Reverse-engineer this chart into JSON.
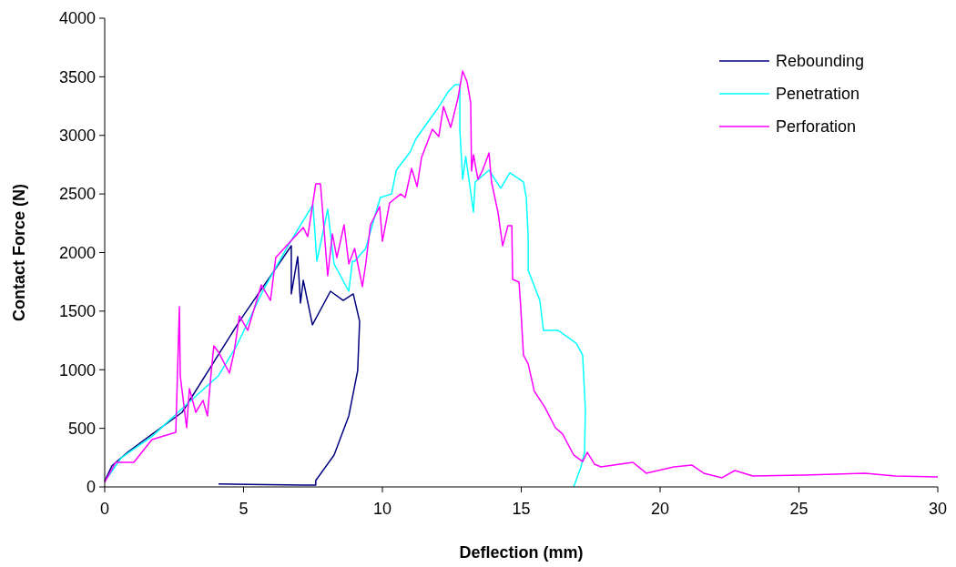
{
  "chart_data": {
    "type": "line",
    "xlabel": "Deflection (mm)",
    "ylabel": "Contact Force (N)",
    "xlim": [
      0,
      30
    ],
    "xticks": [
      0,
      5,
      10,
      15,
      20,
      25,
      30
    ],
    "ylim": [
      0,
      4000
    ],
    "yticks": [
      0,
      500,
      1000,
      1500,
      2000,
      2500,
      3000,
      3500,
      4000
    ],
    "grid": false,
    "legend": "top right",
    "marker": "none",
    "line_style": "solid",
    "series": [
      {
        "name": "Rebounding",
        "color": "#000080",
        "x": [
          0,
          0.26,
          0.82,
          1.57,
          2.79,
          4.85,
          6.72,
          6.72,
          6.95,
          7.05,
          7.15,
          7.48,
          8.13,
          8.59,
          8.95,
          9.18,
          9.11,
          8.79,
          8.26,
          7.6,
          7.6,
          7.15,
          4.1
        ],
        "values": [
          50,
          180,
          295,
          427,
          637,
          1413,
          2058,
          1647,
          1965,
          1569,
          1763,
          1383,
          1670,
          1592,
          1647,
          1413,
          994,
          606,
          272,
          54,
          15,
          15,
          25
        ]
      },
      {
        "name": "Penetration",
        "color": "#00ffff",
        "x": [
          0.1,
          0.6,
          1.7,
          3.0,
          4.1,
          4.75,
          5.74,
          6.6,
          7.5,
          7.64,
          8.03,
          8.26,
          8.79,
          8.92,
          9.0,
          9.4,
          9.77,
          9.93,
          10.33,
          10.5,
          11.0,
          11.2,
          11.57,
          11.97,
          12.39,
          12.62,
          12.79,
          12.79,
          12.89,
          13.0,
          13.28,
          13.34,
          13.84,
          14.26,
          14.59,
          15.08,
          15.18,
          15.25,
          15.25,
          15.67,
          15.8,
          16.33,
          16.98,
          17.21,
          17.31,
          17.28,
          17.15,
          16.89
        ],
        "values": [
          80,
          250,
          430,
          715,
          950,
          1204,
          1693,
          2058,
          2408,
          1926,
          2369,
          1903,
          1670,
          1926,
          1926,
          2035,
          2346,
          2470,
          2500,
          2703,
          2858,
          2967,
          3091,
          3223,
          3379,
          3433,
          3433,
          3045,
          2625,
          2820,
          2346,
          2602,
          2703,
          2548,
          2680,
          2602,
          2470,
          2136,
          1849,
          1592,
          1336,
          1336,
          1227,
          1126,
          660,
          295,
          171,
          0
        ]
      },
      {
        "name": "Perforation",
        "color": "#ff00ff",
        "x": [
          0,
          0.4,
          1.05,
          1.7,
          2.56,
          2.69,
          2.72,
          2.95,
          3.05,
          3.28,
          3.54,
          3.7,
          3.84,
          3.93,
          4.1,
          4.49,
          4.66,
          4.85,
          5.15,
          5.64,
          5.97,
          6.16,
          7.15,
          7.31,
          7.6,
          7.77,
          8.03,
          8.2,
          8.36,
          8.62,
          8.79,
          9.0,
          9.28,
          9.4,
          9.57,
          9.9,
          10.0,
          10.26,
          10.66,
          10.82,
          11.05,
          11.25,
          11.41,
          11.8,
          12.03,
          12.2,
          12.46,
          12.72,
          12.89,
          13.05,
          13.18,
          13.21,
          13.28,
          13.44,
          13.61,
          13.84,
          13.93,
          14.16,
          14.33,
          14.52,
          14.66,
          14.69,
          14.92,
          14.98,
          15.08,
          15.25,
          15.47,
          15.84,
          16.23,
          16.49,
          16.89,
          17.21,
          17.38,
          17.64,
          17.87,
          19.02,
          19.5,
          20.5,
          21.15,
          21.57,
          22.23,
          22.69,
          23.34,
          25.18,
          27.38,
          28.46,
          30
        ],
        "values": [
          40,
          210,
          210,
          404,
          466,
          1538,
          948,
          505,
          839,
          637,
          738,
          606,
          994,
          1204,
          1150,
          971,
          1150,
          1460,
          1336,
          1724,
          1592,
          1957,
          2214,
          2136,
          2586,
          2586,
          1802,
          2159,
          1957,
          2237,
          1903,
          2035,
          1709,
          1903,
          2237,
          2392,
          2097,
          2423,
          2500,
          2470,
          2718,
          2563,
          2812,
          3052,
          2990,
          3247,
          3068,
          3316,
          3550,
          3456,
          3278,
          2695,
          2835,
          2625,
          2703,
          2850,
          2602,
          2346,
          2058,
          2229,
          2229,
          1771,
          1748,
          1538,
          1126,
          1049,
          816,
          684,
          505,
          451,
          272,
          217,
          295,
          194,
          171,
          210,
          117,
          171,
          186,
          117,
          78,
          140,
          93,
          101,
          117,
          93,
          85
        ]
      }
    ]
  }
}
